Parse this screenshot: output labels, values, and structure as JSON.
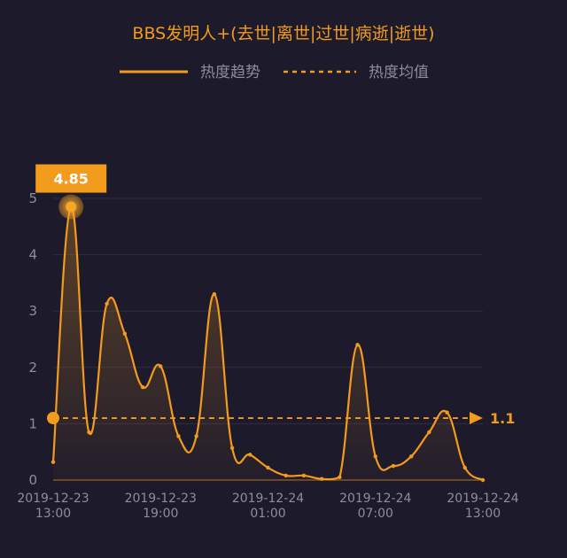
{
  "chart_data": {
    "type": "line",
    "title": "BBS发明人+(去世|离世|过世|病逝|逝世)",
    "legend": [
      {
        "name": "热度趋势",
        "style": "solid",
        "color": "#f29b1d"
      },
      {
        "name": "热度均值",
        "style": "dashed",
        "color": "#f29b1d"
      }
    ],
    "legend_position": "top",
    "ylim": [
      0,
      5
    ],
    "yticks": [
      0,
      1,
      2,
      3,
      4,
      5
    ],
    "grid": true,
    "x_ticks": [
      {
        "line1": "2019-12-23",
        "line2": "13:00",
        "index": 0
      },
      {
        "line1": "2019-12-23",
        "line2": "19:00",
        "index": 6
      },
      {
        "line1": "2019-12-24",
        "line2": "01:00",
        "index": 12
      },
      {
        "line1": "2019-12-24",
        "line2": "07:00",
        "index": 18
      },
      {
        "line1": "2019-12-24",
        "line2": "13:00",
        "index": 24
      }
    ],
    "series": [
      {
        "name": "热度趋势",
        "values": [
          0.32,
          4.85,
          0.85,
          3.13,
          2.6,
          1.65,
          2.02,
          0.78,
          0.78,
          3.3,
          0.57,
          0.45,
          0.22,
          0.08,
          0.08,
          0.02,
          0.05,
          2.4,
          0.42,
          0.25,
          0.42,
          0.85,
          1.2,
          0.22,
          0.0
        ]
      }
    ],
    "max_marker": {
      "label": "4.85",
      "index": 1,
      "value": 4.85
    },
    "mean_line": {
      "label": "1.1",
      "value": 1.1
    },
    "colors": {
      "line": "#f29b1d",
      "background": "#1d1a2c",
      "grid": "#2f2c40",
      "text": "#8f8c9c"
    }
  }
}
